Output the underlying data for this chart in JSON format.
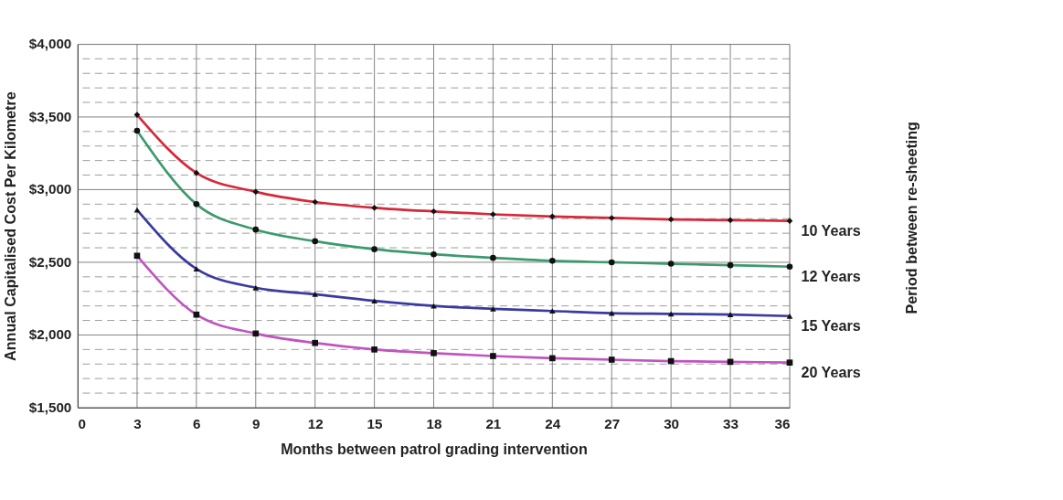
{
  "chart_data": {
    "type": "line",
    "xlabel": "Months between patrol grading intervention",
    "ylabel": "Annual Capitalised Cost Per Kilometre",
    "legend_title": "Period between re-sheeting",
    "legend": "right",
    "grid": true,
    "line_style": "solid",
    "x": [
      3,
      6,
      9,
      12,
      15,
      18,
      21,
      24,
      27,
      30,
      33,
      36
    ],
    "xlim": [
      0,
      36
    ],
    "xticks": [
      0,
      3,
      6,
      9,
      12,
      15,
      18,
      21,
      24,
      27,
      30,
      33,
      36
    ],
    "ylim": [
      1500,
      4000
    ],
    "yticks": [
      {
        "value": 1500,
        "label": "$1,500"
      },
      {
        "value": 1600,
        "label": null
      },
      {
        "value": 1700,
        "label": null
      },
      {
        "value": 1800,
        "label": null
      },
      {
        "value": 1900,
        "label": null
      },
      {
        "value": 2000,
        "label": "$2,000"
      },
      {
        "value": 2100,
        "label": null
      },
      {
        "value": 2200,
        "label": null
      },
      {
        "value": 2300,
        "label": null
      },
      {
        "value": 2400,
        "label": null
      },
      {
        "value": 2500,
        "label": "$2,500"
      },
      {
        "value": 2600,
        "label": null
      },
      {
        "value": 2700,
        "label": null
      },
      {
        "value": 2800,
        "label": null
      },
      {
        "value": 2900,
        "label": null
      },
      {
        "value": 3000,
        "label": "$3,000"
      },
      {
        "value": 3100,
        "label": null
      },
      {
        "value": 3200,
        "label": null
      },
      {
        "value": 3300,
        "label": null
      },
      {
        "value": 3400,
        "label": null
      },
      {
        "value": 3500,
        "label": "$3,500"
      },
      {
        "value": 3600,
        "label": null
      },
      {
        "value": 3700,
        "label": null
      },
      {
        "value": 3800,
        "label": null
      },
      {
        "value": 3900,
        "label": null
      },
      {
        "value": 4000,
        "label": "$4,000"
      }
    ],
    "series": [
      {
        "name": "10 Years",
        "color": "#d62839",
        "marker": "diamond",
        "values": [
          3515,
          3115,
          2985,
          2915,
          2875,
          2850,
          2830,
          2815,
          2805,
          2795,
          2790,
          2785
        ]
      },
      {
        "name": "12 Years",
        "color": "#3d9a6e",
        "marker": "circle",
        "values": [
          3405,
          2900,
          2725,
          2645,
          2590,
          2555,
          2530,
          2510,
          2500,
          2490,
          2480,
          2470
        ]
      },
      {
        "name": "15 Years",
        "color": "#3a3aa0",
        "marker": "triangle",
        "values": [
          2860,
          2455,
          2325,
          2280,
          2235,
          2200,
          2180,
          2165,
          2150,
          2145,
          2140,
          2130
        ]
      },
      {
        "name": "20 Years",
        "color": "#c055c0",
        "marker": "square",
        "values": [
          2545,
          2140,
          2010,
          1945,
          1900,
          1875,
          1855,
          1840,
          1830,
          1820,
          1815,
          1810
        ]
      }
    ]
  }
}
